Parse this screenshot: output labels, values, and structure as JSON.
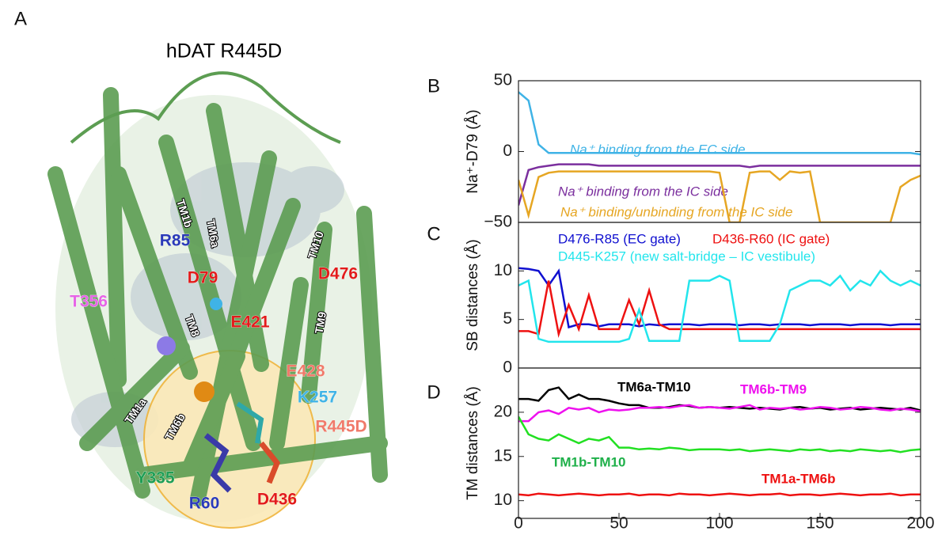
{
  "panel_a": {
    "letter": "A",
    "title": "hDAT R445D",
    "labels": [
      "TM1b",
      "TM6a",
      "R85",
      "TM10",
      "D79",
      "D476",
      "T356",
      "TM8",
      "E421",
      "TM9",
      "E428",
      "TM1a",
      "K257",
      "TM6b",
      "R445D",
      "Y335",
      "R60",
      "D436"
    ]
  },
  "chart_data": [
    {
      "type": "line",
      "letter": "B",
      "ylabel": "Na⁺-D79 (Å)",
      "xlim": [
        0,
        200
      ],
      "ylim": [
        -50,
        50
      ],
      "yticks": [
        {
          "value": -50,
          "label": "−50"
        },
        0,
        50
      ],
      "x": [
        0,
        5,
        10,
        15,
        20,
        25,
        30,
        35,
        40,
        45,
        50,
        55,
        60,
        65,
        70,
        75,
        80,
        85,
        90,
        95,
        100,
        105,
        110,
        115,
        120,
        125,
        130,
        135,
        140,
        145,
        150,
        155,
        160,
        165,
        170,
        175,
        180,
        185,
        190,
        195,
        200
      ],
      "series": [
        {
          "name": "Na⁺ binding from the EC side",
          "color": "#3fb3e6",
          "values": [
            42,
            36,
            5,
            -1,
            -1,
            -1,
            -1,
            -1,
            -1,
            -1,
            -1,
            -1,
            -1,
            -1,
            -1,
            -1,
            -1,
            -1,
            -1,
            -1,
            -1,
            -1,
            -1,
            -1,
            -1,
            -1,
            -1,
            -1,
            -1,
            -1,
            -1,
            -1,
            -1,
            -1,
            -1,
            -1,
            -1,
            -1,
            -1,
            -1,
            -2
          ]
        },
        {
          "name": "Na⁺ binding from the IC side",
          "color": "#7b2f9e",
          "values": [
            -38,
            -13,
            -11,
            -10,
            -9,
            -9,
            -9,
            -9,
            -10,
            -10,
            -10,
            -10,
            -10,
            -10,
            -10,
            -10,
            -10,
            -10,
            -10,
            -10,
            -10,
            -10,
            -10,
            -11,
            -10,
            -10,
            -10,
            -10,
            -10,
            -10,
            -10,
            -10,
            -10,
            -10,
            -10,
            -10,
            -10,
            -10,
            -10,
            -10,
            -10
          ]
        },
        {
          "name": "Na⁺ binding/unbinding from the IC side",
          "color": "#e6a623",
          "values": [
            -20,
            -45,
            -18,
            -15,
            -14,
            -14,
            -14,
            -14,
            -14,
            -14,
            -14,
            -14,
            -14,
            -14,
            -14,
            -14,
            -14,
            -14,
            -14,
            -14,
            -15,
            -50,
            -50,
            -15,
            -14,
            -14,
            -20,
            -14,
            -15,
            -14,
            -50,
            -50,
            -50,
            -50,
            -50,
            -50,
            -50,
            -50,
            -25,
            -20,
            -17
          ]
        }
      ]
    },
    {
      "type": "line",
      "letter": "C",
      "ylabel": "SB distances (Å)",
      "xlim": [
        0,
        200
      ],
      "ylim": [
        0,
        15
      ],
      "yticks": [
        0,
        5,
        10
      ],
      "x": [
        0,
        5,
        10,
        15,
        20,
        25,
        30,
        35,
        40,
        45,
        50,
        55,
        60,
        65,
        70,
        75,
        80,
        85,
        90,
        95,
        100,
        105,
        110,
        115,
        120,
        125,
        130,
        135,
        140,
        145,
        150,
        155,
        160,
        165,
        170,
        175,
        180,
        185,
        190,
        195,
        200
      ],
      "series": [
        {
          "name": "D476-R85 (EC gate)",
          "color": "#1010d0",
          "values": [
            10.3,
            10.2,
            10,
            8.5,
            10,
            4.2,
            4.5,
            4.5,
            4.3,
            4.5,
            4.5,
            4.5,
            4.3,
            4.5,
            4.4,
            4.5,
            4.5,
            4.5,
            4.4,
            4.5,
            4.5,
            4.5,
            4.4,
            4.5,
            4.5,
            4.4,
            4.5,
            4.5,
            4.5,
            4.4,
            4.5,
            4.5,
            4.5,
            4.4,
            4.5,
            4.5,
            4.5,
            4.4,
            4.5,
            4.5,
            4.5
          ]
        },
        {
          "name": "D436-R60 (IC gate)",
          "color": "#ee1111",
          "values": [
            3.8,
            3.8,
            3.5,
            9,
            3.5,
            6.5,
            4,
            7.5,
            4,
            4,
            4,
            7,
            4.5,
            8,
            4.5,
            4,
            4,
            4,
            4,
            4,
            4,
            4,
            4,
            4,
            4,
            4,
            4,
            4,
            4,
            4,
            4,
            4,
            4,
            4,
            4,
            4,
            4,
            4,
            4,
            4,
            4
          ]
        },
        {
          "name": "D445-K257 (new salt-bridge – IC vestibule)",
          "color": "#22e5ec",
          "values": [
            8.5,
            9,
            3,
            2.7,
            2.7,
            2.7,
            2.7,
            2.7,
            2.7,
            2.7,
            2.7,
            3,
            6,
            2.8,
            2.8,
            2.8,
            2.8,
            9,
            9,
            9,
            9.5,
            9,
            2.8,
            2.8,
            2.8,
            2.8,
            4.5,
            8,
            8.5,
            9,
            9,
            8.5,
            9.5,
            8,
            9,
            8.5,
            10,
            9,
            8.5,
            9,
            8.5
          ]
        }
      ]
    },
    {
      "type": "line",
      "letter": "D",
      "ylabel": "TM distances (Å)",
      "xlim": [
        0,
        200
      ],
      "ylim": [
        8,
        25
      ],
      "yticks": [
        10,
        15,
        20
      ],
      "xticks": [
        0,
        50,
        100,
        150,
        200
      ],
      "x": [
        0,
        5,
        10,
        15,
        20,
        25,
        30,
        35,
        40,
        45,
        50,
        55,
        60,
        65,
        70,
        75,
        80,
        85,
        90,
        95,
        100,
        105,
        110,
        115,
        120,
        125,
        130,
        135,
        140,
        145,
        150,
        155,
        160,
        165,
        170,
        175,
        180,
        185,
        190,
        195,
        200
      ],
      "series": [
        {
          "name": "TM6a-TM10",
          "color": "#000000",
          "values": [
            21.5,
            21.5,
            21.3,
            22.5,
            22.8,
            21.5,
            22,
            21.5,
            21.5,
            21.3,
            21,
            20.8,
            20.8,
            20.5,
            20.5,
            20.6,
            20.8,
            20.7,
            20.5,
            20.6,
            20.5,
            20.6,
            20.5,
            20.4,
            20.5,
            20.4,
            20.3,
            20.5,
            20.6,
            20.4,
            20.5,
            20.3,
            20.4,
            20.5,
            20.3,
            20.4,
            20.5,
            20.4,
            20.3,
            20.5,
            20.2
          ]
        },
        {
          "name": "TM6b-TM9",
          "color": "#ee11ee",
          "values": [
            19,
            19,
            20,
            20.2,
            19.8,
            20.5,
            20.3,
            20.5,
            20,
            20.3,
            20.2,
            20.3,
            20.5,
            20.5,
            20.6,
            20.5,
            20.7,
            20.8,
            20.5,
            20.6,
            20.5,
            20.4,
            20.6,
            20.8,
            20.3,
            20.5,
            20.4,
            20.5,
            20.3,
            20.4,
            20.6,
            20.5,
            20.3,
            20.4,
            20.6,
            20.5,
            20.3,
            20.2,
            20.4,
            20.3,
            20.1
          ]
        },
        {
          "name": "TM1b-TM10",
          "color": "#22e022",
          "values": [
            19.5,
            17.5,
            17,
            16.8,
            17.5,
            17,
            16.5,
            17,
            16.8,
            17.2,
            16,
            16,
            15.8,
            15.9,
            15.8,
            16,
            15.9,
            15.7,
            15.8,
            15.8,
            15.8,
            15.7,
            15.8,
            15.6,
            15.7,
            15.8,
            15.7,
            15.6,
            15.8,
            15.7,
            15.8,
            15.6,
            15.7,
            15.6,
            15.8,
            15.7,
            15.6,
            15.7,
            15.5,
            15.7,
            15.8
          ]
        },
        {
          "name": "TM1a-TM6b",
          "color": "#ee1111",
          "values": [
            10.7,
            10.6,
            10.8,
            10.7,
            10.6,
            10.7,
            10.8,
            10.7,
            10.6,
            10.7,
            10.7,
            10.8,
            10.6,
            10.7,
            10.7,
            10.6,
            10.8,
            10.7,
            10.7,
            10.6,
            10.7,
            10.8,
            10.7,
            10.6,
            10.7,
            10.7,
            10.8,
            10.6,
            10.7,
            10.7,
            10.6,
            10.7,
            10.8,
            10.7,
            10.6,
            10.7,
            10.7,
            10.8,
            10.6,
            10.7,
            10.7
          ]
        }
      ]
    }
  ]
}
